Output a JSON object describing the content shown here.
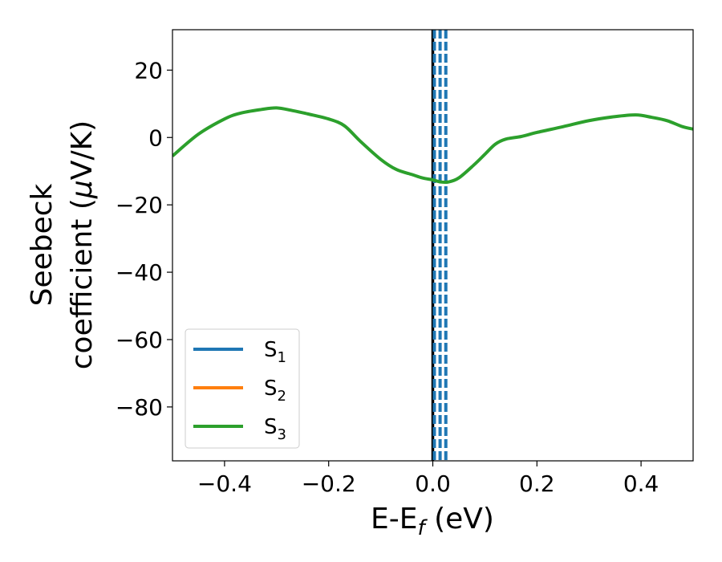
{
  "chart_data": {
    "type": "line",
    "xlabel": "E-E_f (eV)",
    "xlabel_main": "E-E",
    "xlabel_sub": "f",
    "xlabel_tail": " (eV)",
    "ylabel_line1": "Seebeck",
    "ylabel_line2_pre": "coefficient  (",
    "ylabel_line2_mu": "μ",
    "ylabel_line2_post": "V/K)",
    "xlim": [
      -0.5,
      0.5
    ],
    "ylim": [
      -96,
      32
    ],
    "xticks": [
      -0.4,
      -0.2,
      0.0,
      0.2,
      0.4
    ],
    "xtick_labels": [
      "−0.4",
      "−0.2",
      "0.0",
      "0.2",
      "0.4"
    ],
    "yticks": [
      20,
      0,
      -20,
      -40,
      -60,
      -80
    ],
    "ytick_labels": [
      "20",
      "0",
      "−20",
      "−40",
      "−60",
      "−80"
    ],
    "grid": false,
    "legend_position": "lower-left",
    "series": [
      {
        "name": "S1",
        "label_main": "S",
        "label_sub": "1",
        "color": "#1f77b4",
        "x": [],
        "y": []
      },
      {
        "name": "S2",
        "label_main": "S",
        "label_sub": "2",
        "color": "#ff7f0e",
        "x": [],
        "y": []
      },
      {
        "name": "S3",
        "label_main": "S",
        "label_sub": "3",
        "color": "#2ca02c",
        "x": [
          -0.5,
          -0.45,
          -0.4,
          -0.37,
          -0.33,
          -0.3,
          -0.27,
          -0.24,
          -0.2,
          -0.17,
          -0.14,
          -0.1,
          -0.07,
          -0.04,
          -0.02,
          0.0,
          0.015,
          0.03,
          0.05,
          0.08,
          0.1,
          0.12,
          0.14,
          0.17,
          0.2,
          0.25,
          0.3,
          0.35,
          0.39,
          0.42,
          0.45,
          0.48,
          0.5
        ],
        "y": [
          -5.5,
          1.0,
          5.5,
          7.2,
          8.3,
          8.8,
          8.0,
          7.0,
          5.5,
          3.5,
          -1.0,
          -6.5,
          -9.5,
          -11.0,
          -12.0,
          -12.6,
          -13.2,
          -13.2,
          -12.0,
          -8.0,
          -5.0,
          -2.0,
          -0.5,
          0.3,
          1.5,
          3.2,
          5.0,
          6.2,
          6.7,
          6.0,
          5.0,
          3.2,
          2.5
        ]
      }
    ],
    "vertical_lines": [
      {
        "x": 0.0,
        "color": "#000000",
        "style": "solid"
      },
      {
        "x": 0.003,
        "color": "#1f77b4",
        "style": "dashed"
      },
      {
        "x": 0.014,
        "color": "#1f77b4",
        "style": "dashed"
      },
      {
        "x": 0.025,
        "color": "#1f77b4",
        "style": "dashed"
      }
    ]
  }
}
